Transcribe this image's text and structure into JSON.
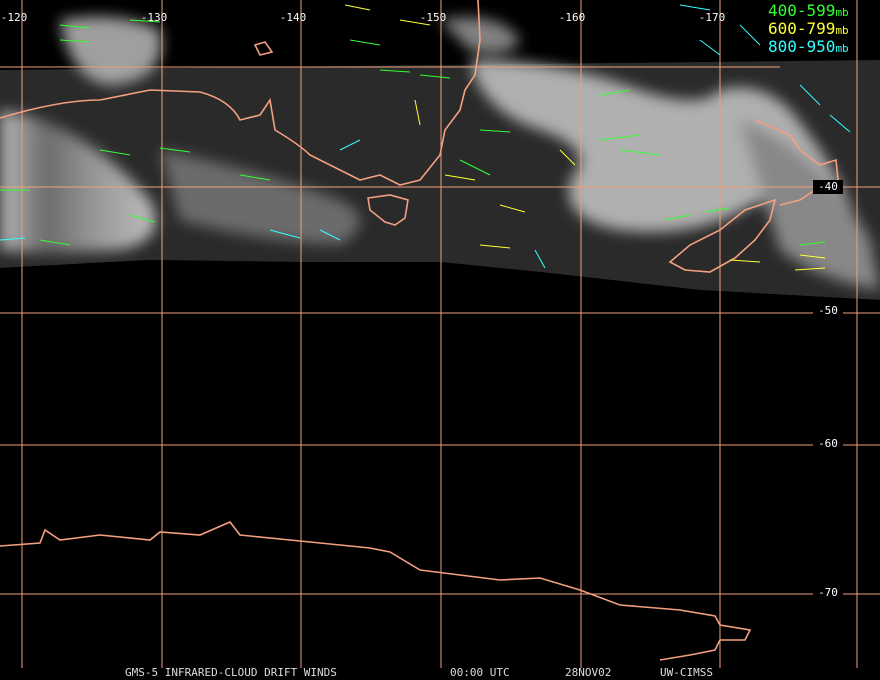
{
  "map": {
    "longitude_labels": [
      "-120",
      "-130",
      "-140",
      "-150",
      "-160",
      "-170"
    ],
    "latitude_labels": [
      "-40",
      "-50",
      "-60",
      "-70"
    ],
    "legend": [
      {
        "range": "400-599",
        "unit": "mb",
        "color": "#33ff33"
      },
      {
        "range": "600-799",
        "unit": "mb",
        "color": "#ffff33"
      },
      {
        "range": "800-950",
        "unit": "mb",
        "color": "#33ffff"
      }
    ],
    "footer": {
      "product": "GMS-5 INFRARED-CLOUD DRIFT WINDS",
      "time": "00:00 UTC",
      "date": "28NOV02",
      "source": "UW-CIMSS"
    }
  }
}
